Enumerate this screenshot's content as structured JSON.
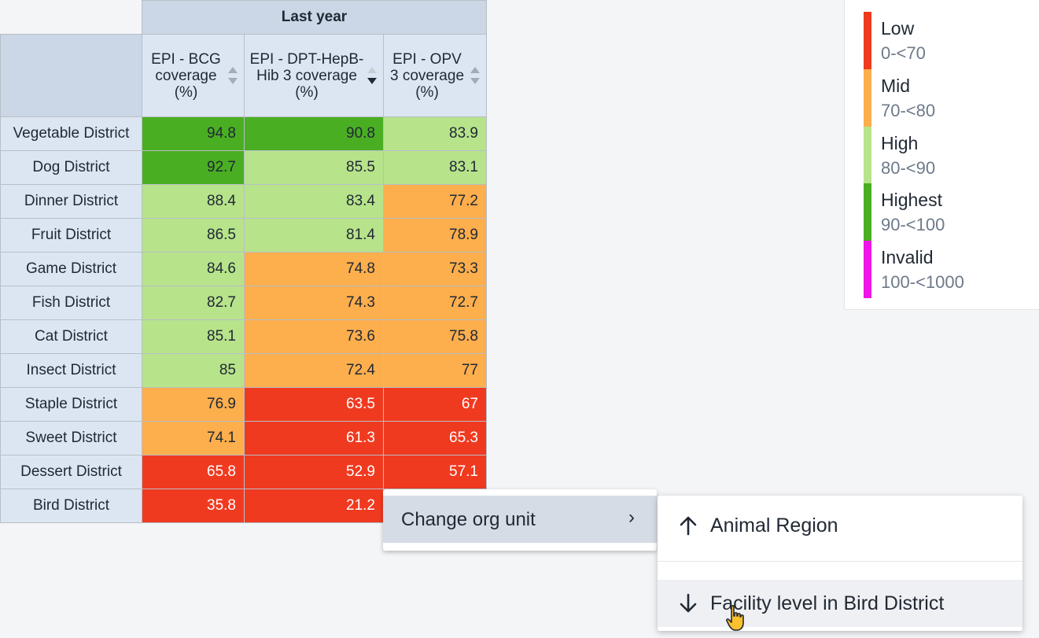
{
  "table": {
    "period_header": "Last year",
    "columns": [
      {
        "label": "EPI - BCG coverage (%)",
        "sort": "none"
      },
      {
        "label": "EPI - DPT-HepB-Hib 3 coverage (%)",
        "sort": "desc"
      },
      {
        "label": "EPI - OPV 3 coverage (%)",
        "sort": "none"
      }
    ],
    "rows": [
      {
        "name": "Vegetable District",
        "values": [
          "94.8",
          "90.8",
          "83.9"
        ],
        "levels": [
          "highest",
          "highest",
          "high"
        ]
      },
      {
        "name": "Dog District",
        "values": [
          "92.7",
          "85.5",
          "83.1"
        ],
        "levels": [
          "highest",
          "high",
          "high"
        ]
      },
      {
        "name": "Dinner District",
        "values": [
          "88.4",
          "83.4",
          "77.2"
        ],
        "levels": [
          "high",
          "high",
          "mid"
        ]
      },
      {
        "name": "Fruit District",
        "values": [
          "86.5",
          "81.4",
          "78.9"
        ],
        "levels": [
          "high",
          "high",
          "mid"
        ]
      },
      {
        "name": "Game District",
        "values": [
          "84.6",
          "74.8",
          "73.3"
        ],
        "levels": [
          "high",
          "mid",
          "mid"
        ]
      },
      {
        "name": "Fish District",
        "values": [
          "82.7",
          "74.3",
          "72.7"
        ],
        "levels": [
          "high",
          "mid",
          "mid"
        ]
      },
      {
        "name": "Cat District",
        "values": [
          "85.1",
          "73.6",
          "75.8"
        ],
        "levels": [
          "high",
          "mid",
          "mid"
        ]
      },
      {
        "name": "Insect District",
        "values": [
          "85",
          "72.4",
          "77"
        ],
        "levels": [
          "high",
          "mid",
          "mid"
        ]
      },
      {
        "name": "Staple District",
        "values": [
          "76.9",
          "63.5",
          "67"
        ],
        "levels": [
          "mid",
          "low",
          "low"
        ]
      },
      {
        "name": "Sweet District",
        "values": [
          "74.1",
          "61.3",
          "65.3"
        ],
        "levels": [
          "mid",
          "low",
          "low"
        ]
      },
      {
        "name": "Dessert District",
        "values": [
          "65.8",
          "52.9",
          "57.1"
        ],
        "levels": [
          "low",
          "low",
          "low"
        ]
      },
      {
        "name": "Bird District",
        "values": [
          "35.8",
          "21.2",
          ""
        ],
        "levels": [
          "low",
          "low",
          "low"
        ]
      }
    ]
  },
  "legend": {
    "items": [
      {
        "name": "Low",
        "range": "0-<70",
        "color": "#f03a20"
      },
      {
        "name": "Mid",
        "range": "70-<80",
        "color": "#fdae4d"
      },
      {
        "name": "High",
        "range": "80-<90",
        "color": "#b7e38b"
      },
      {
        "name": "Highest",
        "range": "90-<100",
        "color": "#4aae23"
      },
      {
        "name": "Invalid",
        "range": "100-<1000",
        "color": "#ee16e6"
      }
    ]
  },
  "context_menu": {
    "item": "Change org unit",
    "chevron": "›",
    "submenu": [
      {
        "label": "Animal Region",
        "icon": "arrow-up-icon"
      },
      {
        "label": "Facility level in Bird District",
        "icon": "arrow-down-icon"
      }
    ]
  }
}
